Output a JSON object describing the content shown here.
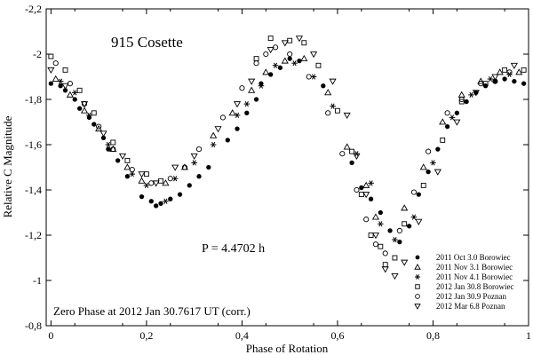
{
  "chart_data": {
    "type": "scatter",
    "title": "915 Cosette",
    "xlabel": "Phase of Rotation",
    "ylabel": "Relative C Magnitude",
    "xlim": [
      -0.01,
      1.0
    ],
    "ylim": [
      -2.2,
      -0.8
    ],
    "y_inverted": true,
    "xticks": [
      0,
      0.2,
      0.4,
      0.6,
      0.8,
      1
    ],
    "xtick_labels": [
      "0",
      "0,2",
      "0,4",
      "0,6",
      "0,8",
      "1"
    ],
    "yticks": [
      -2.2,
      -2.0,
      -1.8,
      -1.6,
      -1.4,
      -1.2,
      -1.0,
      -0.8
    ],
    "ytick_labels": [
      "-2,2",
      "-2",
      "-1,8",
      "-1,6",
      "-1,4",
      "-1,2",
      "-1",
      "-0,8"
    ],
    "period_label": "P =  4.4702 h",
    "zero_phase_label": "Zero Phase at 2012 Jan 30.7617 UT (corr.)",
    "legend_position": "bottom-right",
    "series": [
      {
        "name": "2011 Oct 3.0 Borowiec",
        "marker": "filled-circle",
        "x": [
          0.0,
          0.02,
          0.03,
          0.05,
          0.06,
          0.08,
          0.09,
          0.11,
          0.12,
          0.14,
          0.16,
          0.19,
          0.21,
          0.22,
          0.23,
          0.25,
          0.27,
          0.29,
          0.31,
          0.33,
          0.37,
          0.39,
          0.41,
          0.43,
          0.44,
          0.46,
          0.48,
          0.5,
          0.52,
          0.57,
          0.63,
          0.65,
          0.67,
          0.69,
          0.71,
          0.73,
          0.75,
          0.77,
          0.79,
          0.81,
          0.83,
          0.85,
          0.87,
          0.89,
          0.91,
          0.93,
          0.95,
          0.97,
          0.99
        ],
        "y": [
          -1.87,
          -1.86,
          -1.84,
          -1.8,
          -1.76,
          -1.72,
          -1.69,
          -1.63,
          -1.58,
          -1.53,
          -1.46,
          -1.37,
          -1.35,
          -1.33,
          -1.34,
          -1.36,
          -1.38,
          -1.42,
          -1.46,
          -1.5,
          -1.62,
          -1.67,
          -1.74,
          -1.8,
          -1.87,
          -1.91,
          -1.94,
          -1.98,
          -1.97,
          -1.86,
          -1.52,
          -1.41,
          -1.36,
          -1.3,
          -1.22,
          -1.17,
          -1.24,
          -1.38,
          -1.48,
          -1.58,
          -1.68,
          -1.74,
          -1.79,
          -1.83,
          -1.86,
          -1.88,
          -1.89,
          -1.88,
          -1.87
        ]
      },
      {
        "name": "2011 Nov 3.1 Borowiec",
        "marker": "open-triangle",
        "x": [
          0.01,
          0.04,
          0.07,
          0.1,
          0.13,
          0.16,
          0.19,
          0.24,
          0.28,
          0.34,
          0.38,
          0.42,
          0.45,
          0.49,
          0.53,
          0.58,
          0.62,
          0.66,
          0.68,
          0.74,
          0.78,
          0.82,
          0.86,
          0.9,
          0.94,
          0.98
        ],
        "y": [
          -1.89,
          -1.82,
          -1.75,
          -1.67,
          -1.58,
          -1.5,
          -1.44,
          -1.43,
          -1.5,
          -1.64,
          -1.74,
          -1.84,
          -1.92,
          -1.97,
          -1.98,
          -1.83,
          -1.59,
          -1.42,
          -1.28,
          -1.32,
          -1.5,
          -1.7,
          -1.82,
          -1.88,
          -1.92,
          -1.92
        ]
      },
      {
        "name": "2011 Nov 4.1 Borowiec",
        "marker": "asterisk",
        "x": [
          0.02,
          0.05,
          0.08,
          0.12,
          0.17,
          0.2,
          0.24,
          0.26,
          0.3,
          0.34,
          0.39,
          0.41,
          0.44,
          0.47,
          0.51,
          0.55,
          0.59,
          0.64,
          0.67,
          0.69,
          0.72,
          0.76,
          0.8,
          0.84,
          0.88,
          0.92,
          0.96
        ],
        "y": [
          -1.88,
          -1.83,
          -1.73,
          -1.6,
          -1.47,
          -1.42,
          -1.35,
          -1.45,
          -1.52,
          -1.6,
          -1.73,
          -1.78,
          -1.86,
          -1.95,
          -1.96,
          -1.9,
          -1.77,
          -1.56,
          -1.43,
          -1.25,
          -1.18,
          -1.28,
          -1.52,
          -1.72,
          -1.82,
          -1.89,
          -1.91
        ]
      },
      {
        "name": "2012 Jan 30.8 Borowiec",
        "marker": "open-square",
        "x": [
          0.0,
          0.03,
          0.06,
          0.09,
          0.13,
          0.16,
          0.2,
          0.23,
          0.43,
          0.46,
          0.5,
          0.53,
          0.56,
          0.6,
          0.63,
          0.65,
          0.67,
          0.69,
          0.7,
          0.72,
          0.74,
          0.78,
          0.82,
          0.86,
          0.91,
          0.95,
          0.99
        ],
        "y": [
          -1.99,
          -1.93,
          -1.84,
          -1.74,
          -1.61,
          -1.53,
          -1.47,
          -1.44,
          -1.98,
          -2.07,
          -2.06,
          -2.05,
          -1.95,
          -1.75,
          -1.57,
          -1.38,
          -1.2,
          -1.15,
          -1.07,
          -1.1,
          -1.25,
          -1.42,
          -1.62,
          -1.79,
          -1.87,
          -1.93,
          -1.93
        ]
      },
      {
        "name": "2012 Jan 30.9 Poznan",
        "marker": "open-circle",
        "x": [
          0.01,
          0.04,
          0.07,
          0.1,
          0.13,
          0.17,
          0.21,
          0.25,
          0.28,
          0.31,
          0.36,
          0.4,
          0.43,
          0.45,
          0.47,
          0.5,
          0.54,
          0.58,
          0.61,
          0.64,
          0.66,
          0.68,
          0.7,
          0.73,
          0.76,
          0.79,
          0.83,
          0.86,
          0.9,
          0.93,
          0.96
        ],
        "y": [
          -1.96,
          -1.87,
          -1.78,
          -1.68,
          -1.58,
          -1.49,
          -1.43,
          -1.45,
          -1.5,
          -1.58,
          -1.72,
          -1.85,
          -1.96,
          -2.0,
          -2.03,
          -2.0,
          -1.9,
          -1.74,
          -1.56,
          -1.4,
          -1.27,
          -1.16,
          -1.12,
          -1.22,
          -1.39,
          -1.57,
          -1.74,
          -1.8,
          -1.87,
          -1.88,
          -1.92
        ]
      },
      {
        "name": "2012 Mar 6.8 Poznan",
        "marker": "open-triangle-down",
        "x": [
          0.0,
          0.03,
          0.07,
          0.11,
          0.15,
          0.19,
          0.22,
          0.26,
          0.3,
          0.35,
          0.39,
          0.42,
          0.46,
          0.49,
          0.52,
          0.55,
          0.59,
          0.62,
          0.64,
          0.66,
          0.68,
          0.7,
          0.72,
          0.74,
          0.77,
          0.81,
          0.85,
          0.89,
          0.93,
          0.97
        ],
        "y": [
          -1.93,
          -1.86,
          -1.78,
          -1.65,
          -1.55,
          -1.47,
          -1.43,
          -1.5,
          -1.55,
          -1.67,
          -1.78,
          -1.88,
          -2.02,
          -2.05,
          -2.07,
          -2.0,
          -1.88,
          -1.73,
          -1.55,
          -1.38,
          -1.2,
          -1.05,
          -1.02,
          -1.08,
          -1.26,
          -1.48,
          -1.7,
          -1.83,
          -1.9,
          -1.95
        ]
      }
    ]
  }
}
